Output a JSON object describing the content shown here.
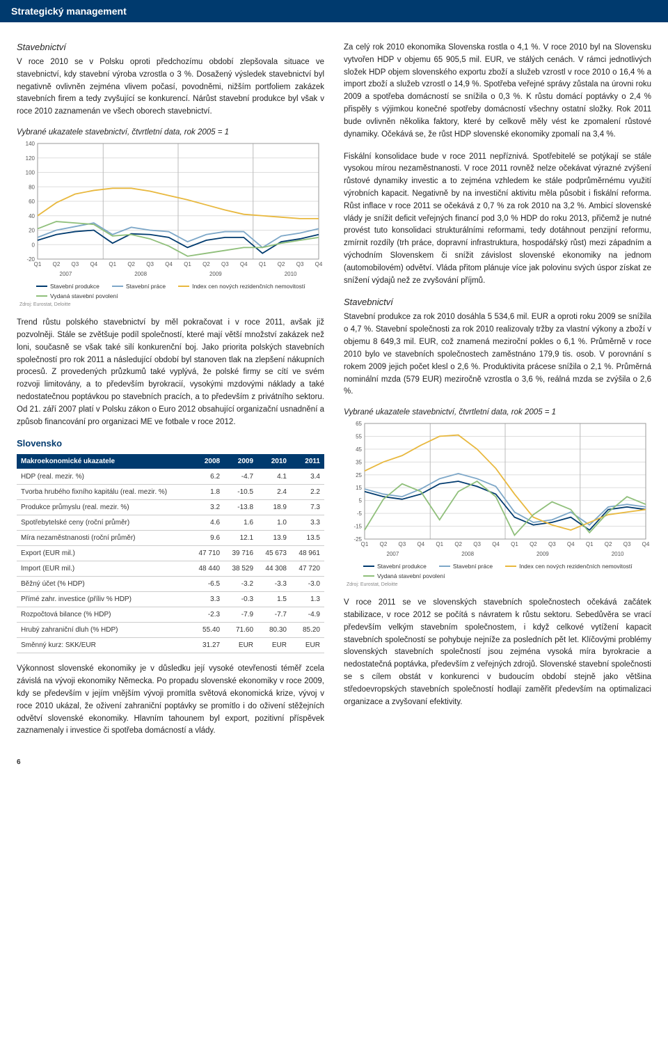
{
  "header": {
    "title": "Strategický management"
  },
  "left": {
    "sec1_heading": "Stavebnictví",
    "para1": "V roce 2010 se v Polsku oproti předchozímu období zlepšovala situace ve stavebnictví, kdy stavební výroba vzrostla o 3 %. Dosažený výsledek stavebnictví byl negativně ovlivněn zejména vlivem počasí, povodněmi, nižším portfoliem zakázek stavebních firem a tedy zvyšující se konkurencí. Nárůst stavební produkce byl však v roce 2010 zaznamenán ve všech oborech stavebnictví.",
    "chart1": {
      "title": "Vybrané ukazatele stavebnictví, čtvrtletní data, rok 2005 = 1",
      "quarters": [
        "Q1",
        "Q2",
        "Q3",
        "Q4",
        "Q1",
        "Q2",
        "Q3",
        "Q4",
        "Q1",
        "Q2",
        "Q3",
        "Q4",
        "Q1",
        "Q2",
        "Q3",
        "Q4"
      ],
      "years": [
        "2007",
        "2008",
        "2009",
        "2010"
      ],
      "ylim": [
        -20,
        140
      ],
      "yticks": [
        -20,
        0,
        20,
        40,
        60,
        80,
        100,
        120,
        140
      ],
      "series": [
        {
          "name": "Stavební produkce",
          "color": "#003a6e",
          "data": [
            6,
            14,
            18,
            20,
            2,
            15,
            14,
            10,
            -4,
            6,
            10,
            10,
            -12,
            4,
            8,
            14
          ]
        },
        {
          "name": "Stavební práce",
          "color": "#7da7c8",
          "data": [
            10,
            20,
            25,
            30,
            14,
            24,
            20,
            18,
            4,
            14,
            18,
            18,
            -4,
            12,
            16,
            22
          ]
        },
        {
          "name": "Index cen nových rezidenčních nemovitostí",
          "color": "#e8b83e",
          "data": [
            40,
            58,
            70,
            75,
            78,
            78,
            74,
            68,
            62,
            55,
            48,
            42,
            40,
            38,
            36,
            36
          ]
        },
        {
          "name": "Vydaná stavební povolení",
          "color": "#8fbf7a",
          "data": [
            22,
            32,
            30,
            28,
            12,
            14,
            8,
            -2,
            -16,
            -12,
            -8,
            -4,
            -4,
            2,
            6,
            10
          ]
        }
      ],
      "source": "Zdroj: Eurostat, Deloitte",
      "bg": "#ffffff",
      "grid": "#dddddd",
      "axis": "#999999"
    },
    "para2": "Trend růstu polského stavebnictví by měl pokračovat i v roce 2011, avšak již pozvolněji. Stále se zvětšuje podíl společností, které mají větší množství zakázek než loni, současně se však také silí konkurenční boj. Jako priorita polských stavebních společností pro rok 2011 a následující období byl stanoven tlak na zlepšení nákupních procesů. Z provedených průzkumů také vyplývá, že polské firmy se cítí ve svém rozvoji limitovány, a to především byrokracií, vysokými mzdovými náklady a také nedostatečnou poptávkou po stavebních pracích, a to především z privátního sektoru. Od 21. září 2007 platí v Polsku zákon o Euro 2012 obsahující organizační usnadnění a způsob financování pro organizaci ME ve fotbale v roce 2012.",
    "slovensko_heading": "Slovensko",
    "table": {
      "head": [
        "Makroekonomické ukazatele",
        "2008",
        "2009",
        "2010",
        "2011"
      ],
      "rows": [
        [
          "HDP (real. mezir. %)",
          "6.2",
          "-4.7",
          "4.1",
          "3.4"
        ],
        [
          "Tvorba hrubého fixního kapitálu (real. mezir. %)",
          "1.8",
          "-10.5",
          "2.4",
          "2.2"
        ],
        [
          "Produkce průmyslu (real. mezir. %)",
          "3.2",
          "-13.8",
          "18.9",
          "7.3"
        ],
        [
          "Spotřebytelské ceny (roční průměr)",
          "4.6",
          "1.6",
          "1.0",
          "3.3"
        ],
        [
          "Míra nezaměstnanosti (roční průměr)",
          "9.6",
          "12.1",
          "13.9",
          "13.5"
        ],
        [
          "Export (EUR mil.)",
          "47 710",
          "39 716",
          "45 673",
          "48 961"
        ],
        [
          "Import (EUR mil.)",
          "48 440",
          "38 529",
          "44 308",
          "47 720"
        ],
        [
          "Běžný účet (% HDP)",
          "-6.5",
          "-3.2",
          "-3.3",
          "-3.0"
        ],
        [
          "Přímé zahr. investice (příliv % HDP)",
          "3.3",
          "-0.3",
          "1.5",
          "1.3"
        ],
        [
          "Rozpočtová bilance (% HDP)",
          "-2.3",
          "-7.9",
          "-7.7",
          "-4.9"
        ],
        [
          "Hrubý zahraniční dluh (% HDP)",
          "55.40",
          "71.60",
          "80.30",
          "85.20"
        ],
        [
          "Směnný kurz: SKK/EUR",
          "31.27",
          "EUR",
          "EUR",
          "EUR"
        ]
      ]
    },
    "para3": "Výkonnost slovenské ekonomiky je v důsledku její vysoké otevřenosti téměř zcela závislá na vývoji ekonomiky Německa. Po propadu slovenské ekonomiky v roce 2009, kdy se především v jejím vnějším vývoji promítla světová ekonomická krize, vývoj v roce 2010 ukázal, že oživení zahraniční poptávky se promítlo i do oživení stěžejních odvětví slovenské ekonomiky. Hlavním tahounem byl export, pozitivní příspěvek zaznamenaly i investice či spotřeba domácností a vlády."
  },
  "right": {
    "para1": "Za celý rok 2010 ekonomika Slovenska rostla o 4,1 %. V roce 2010 byl na Slovensku vytvořen HDP v objemu 65 905,5 mil. EUR, ve stálých cenách. V rámci jednotlivých složek HDP objem slovenského exportu zboží a služeb vzrostl v roce 2010 o 16,4 % a import zboží a služeb vzrostl o 14,9 %. Spotřeba veřejné správy zůstala na úrovni roku 2009 a spotřeba domácností se snížila o 0,3 %. K růstu domácí poptávky o 2,4 % přispěly s výjimkou konečné spotřeby domácností všechny ostatní složky. Rok 2011 bude ovlivněn několika faktory, které by celkově měly vést ke zpomalení růstové dynamiky. Očekává se, že růst HDP slovenské ekonomiky zpomalí na 3,4 %.",
    "para2": "Fiskální konsolidace bude v roce 2011 nepříznivá. Spotřebitelé se potýkají se stále vysokou mírou nezaměstnanosti. V roce 2011 rovněž nelze očekávat výrazné zvýšení růstové dynamiky investic a to zejména vzhledem ke stále podprůměrnému využití výrobních kapacit. Negativně by na investiční aktivitu měla působit i fiskální reforma. Růst inflace v roce 2011 se očekává z 0,7 % za rok 2010 na 3,2 %. Ambicí slovenské vlády je snížit deficit veřejných financí pod 3,0 % HDP do roku 2013, přičemž je nutné provést tuto konsolidaci strukturálními reformami, tedy dotáhnout penzijní reformu, zmírnit rozdíly (trh práce, dopravní infrastruktura, hospodářský růst) mezi západním a východním Slovenskem či snížit závislost slovenské ekonomiky na jednom (automobilovém) odvětví. Vláda přitom plánuje více jak polovinu svých úspor získat ze snížení výdajů než ze zvyšování příjmů.",
    "sec2_heading": "Stavebnictví",
    "para3": "Stavební produkce za rok 2010 dosáhla 5 534,6 mil. EUR a oproti roku 2009 se snížila o 4,7 %. Stavební společnosti za rok 2010 realizovaly tržby za vlastní výkony a zboží v objemu 8 649,3 mil. EUR, což znamená meziroční pokles o 6,1 %. Průměrně v roce 2010 bylo ve stavebních společnostech zaměstnáno 179,9 tis. osob. V porovnání s rokem 2009 jejich počet klesl o 2,6 %. Produktivita prácese snížila o 2,1 %. Průměrná nominální mzda (579 EUR) meziročně vzrostla o 3,6 %, reálná mzda se zvýšila o 2,6 %.",
    "chart2": {
      "title": "Vybrané ukazatele stavebnictví, čtvrtletní data, rok 2005 = 1",
      "quarters": [
        "Q1",
        "Q2",
        "Q3",
        "Q4",
        "Q1",
        "Q2",
        "Q3",
        "Q4",
        "Q1",
        "Q2",
        "Q3",
        "Q4",
        "Q1",
        "Q2",
        "Q3",
        "Q4"
      ],
      "years": [
        "2007",
        "2008",
        "2009",
        "2010"
      ],
      "ylim": [
        -25,
        65
      ],
      "yticks": [
        -25,
        -15,
        -5,
        5,
        15,
        25,
        35,
        45,
        55,
        65
      ],
      "series": [
        {
          "name": "Stavební produkce",
          "color": "#003a6e",
          "data": [
            12,
            8,
            6,
            10,
            18,
            20,
            16,
            10,
            -8,
            -14,
            -12,
            -8,
            -18,
            -2,
            0,
            -2
          ]
        },
        {
          "name": "Stavební práce",
          "color": "#7da7c8",
          "data": [
            14,
            10,
            8,
            14,
            22,
            26,
            22,
            16,
            -4,
            -12,
            -10,
            -4,
            -14,
            0,
            2,
            0
          ]
        },
        {
          "name": "Index cen nových rezidenčních nemovitostí",
          "color": "#e8b83e",
          "data": [
            28,
            35,
            40,
            48,
            55,
            56,
            45,
            30,
            10,
            -8,
            -14,
            -18,
            -12,
            -6,
            -4,
            -2
          ]
        },
        {
          "name": "Vydaná stavební povolení",
          "color": "#8fbf7a",
          "data": [
            -18,
            6,
            18,
            12,
            -10,
            12,
            20,
            8,
            -22,
            -6,
            4,
            -2,
            -20,
            -4,
            8,
            2
          ]
        }
      ],
      "source": "Zdroj: Eurostat, Deloitte",
      "bg": "#ffffff",
      "grid": "#dddddd",
      "axis": "#999999"
    },
    "para4": "V roce 2011 se ve slovenských stavebních společnostech očekává začátek stabilizace, v roce 2012 se počítá s návratem k růstu sektoru. Sebedůvěra se vrací především velkým stavebním společnostem, i když celkové vytížení kapacit stavebních společností se pohybuje nejníže za posledních pět let. Klíčovými problémy slovenských stavebních společností jsou zejména vysoká míra byrokracie a nedostatečná poptávka, především z veřejných zdrojů. Slovenské stavební společnosti se s cílem obstát v konkurenci v budoucím období stejně jako většina středoevropských stavebních společností hodlají zaměřit především na optimalizaci organizace a zvyšovaní efektivity."
  },
  "page_number": "6"
}
